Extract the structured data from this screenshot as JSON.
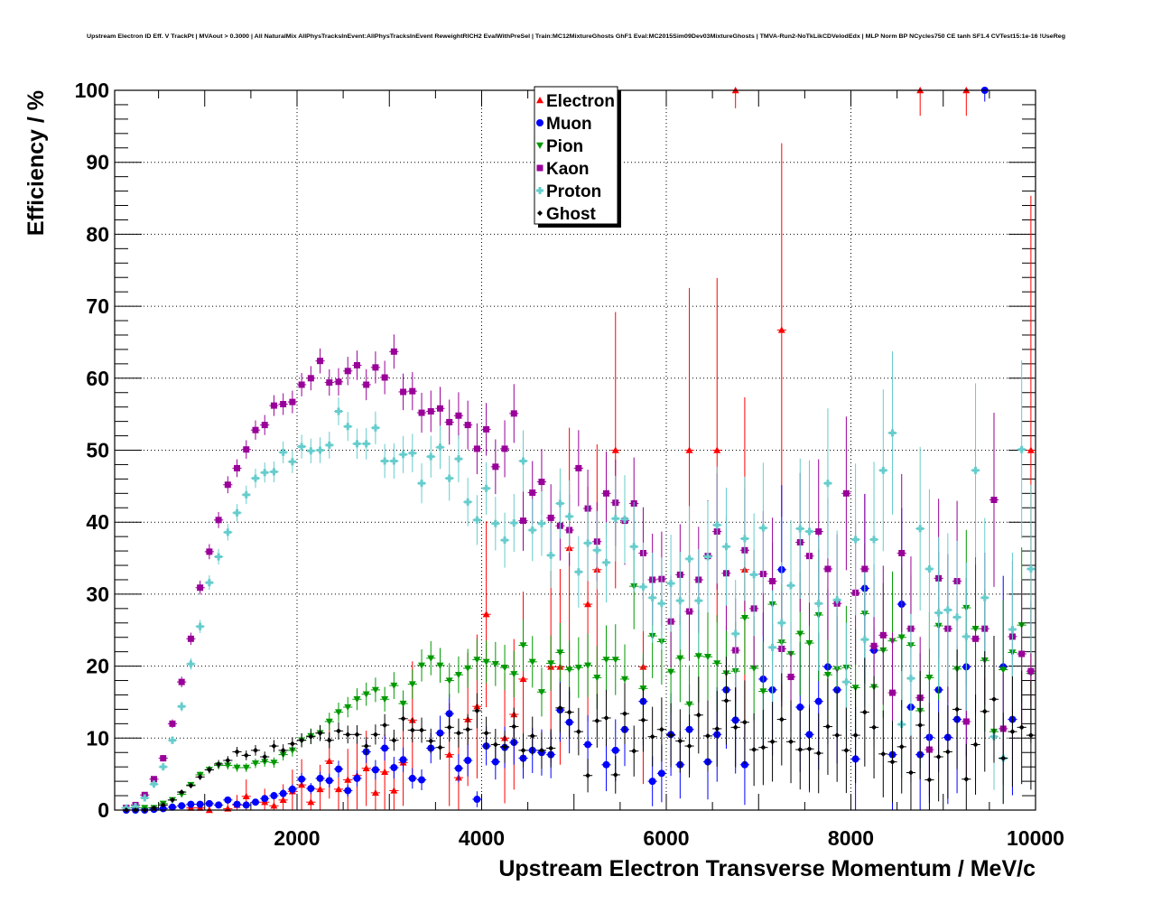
{
  "chart_data": {
    "type": "scatter",
    "title": "Upstream Electron ID Eff. V TrackPt | MVAout > 0.3000 | All NaturalMix AllPhysTracksInEvent:AllPhysTracksInEvent ReweightRICH2 EvalWithPreSel | Train:MC12MixtureGhosts GhF1 Eval:MC2015Sim09Dev03MixtureGhosts | TMVA-Run2-NoTkLikCDVelodEdx | MLP Norm BP NCycles750 CE tanh SF1.4 CVTest15:1e-16 !UseReg",
    "xlabel": "Upstream Electron Transverse Momentum / MeV/c",
    "ylabel": "Efficiency / %",
    "xlim": [
      0,
      10000
    ],
    "ylim": [
      0,
      100
    ],
    "xticks": [
      "2000",
      "4000",
      "6000",
      "8000",
      "10000"
    ],
    "yticks": [
      "0",
      "10",
      "20",
      "30",
      "40",
      "50",
      "60",
      "70",
      "80",
      "90",
      "100"
    ],
    "grid": true,
    "legend_position": "top-center",
    "x": [
      150,
      250,
      350,
      450,
      550,
      650,
      750,
      850,
      950,
      1050,
      1150,
      1250,
      1350,
      1450,
      1550,
      1650,
      1750,
      1850,
      1950,
      2050,
      2150,
      2250,
      2350,
      2450,
      2550,
      2650,
      2750,
      2850,
      2950,
      3050,
      3150,
      3250,
      3350,
      3450,
      3550,
      3650,
      3750,
      3850,
      3950,
      4050,
      4150,
      4250,
      4350,
      4450,
      4550,
      4650,
      4750,
      4850,
      4950,
      5050,
      5150,
      5250,
      5350,
      5450,
      5550,
      5650,
      5750,
      5850,
      5950,
      6050,
      6150,
      6250,
      6350,
      6450,
      6550,
      6650,
      6750,
      6850,
      6950,
      7050,
      7150,
      7250,
      7350,
      7450,
      7550,
      7650,
      7750,
      7850,
      7950,
      8050,
      8150,
      8250,
      8350,
      8450,
      8550,
      8650,
      8750,
      8850,
      8950,
      9050,
      9150,
      9250,
      9350,
      9450,
      9550,
      9650,
      9750,
      9850,
      9950
    ],
    "series": [
      {
        "name": "Electron",
        "color": "#ff0000",
        "marker": "triangle-up",
        "y": [
          null,
          null,
          null,
          null,
          null,
          null,
          null,
          0.3,
          0.3,
          0,
          null,
          0.2,
          0.7,
          1.9,
          null,
          1.1,
          0.6,
          1.4,
          2.6,
          3.5,
          1.1,
          2.9,
          6.8,
          2.9,
          4.2,
          4.8,
          5.8,
          2.4,
          5.3,
          2.7,
          6.6,
          12.5,
          null,
          null,
          null,
          7.7,
          4.5,
          12.6,
          14.4,
          27.2,
          null,
          10.0,
          13.3,
          18.2,
          null,
          null,
          19.9,
          19.9,
          36.4,
          null,
          28.6,
          33.4,
          null,
          50.0,
          null,
          null,
          19.9,
          null,
          null,
          null,
          null,
          50.0,
          null,
          null,
          50.0,
          null,
          100,
          33.4,
          null,
          null,
          null,
          66.7,
          null,
          null,
          null,
          null,
          null,
          null,
          null,
          null,
          null,
          null,
          null,
          null,
          null,
          null,
          100,
          null,
          null,
          null,
          null,
          100,
          null,
          null,
          null,
          null,
          null,
          null,
          50.0
        ]
      },
      {
        "name": "Muon",
        "color": "#0000ff",
        "marker": "circle",
        "y": [
          0,
          0,
          0,
          0.1,
          0.2,
          0.4,
          0.6,
          0.8,
          0.8,
          0.9,
          0.7,
          1.4,
          0.8,
          0.7,
          1.1,
          1.6,
          2.0,
          2.3,
          2.9,
          4.3,
          3.0,
          4.4,
          4.1,
          5.7,
          2.7,
          4.4,
          8.1,
          5.6,
          8.6,
          5.9,
          7.0,
          4.4,
          4.2,
          8.6,
          10.7,
          13.4,
          5.8,
          6.9,
          1.5,
          8.9,
          6.7,
          8.7,
          9.4,
          7.2,
          8.3,
          8.0,
          7.7,
          13.9,
          12.2,
          null,
          9.1,
          null,
          6.3,
          8.3,
          11.2,
          null,
          15.1,
          4.0,
          5.1,
          10.5,
          6.3,
          11.2,
          null,
          6.7,
          10.5,
          16.7,
          12.5,
          6.3,
          null,
          18.2,
          16.7,
          33.4,
          null,
          14.3,
          10.5,
          15.1,
          19.9,
          16.7,
          null,
          7.1,
          30.8,
          22.2,
          null,
          7.7,
          28.6,
          14.3,
          7.7,
          10.1,
          16.7,
          10.1,
          12.6,
          19.9,
          null,
          100,
          null,
          19.9,
          12.6,
          null,
          null
        ]
      },
      {
        "name": "Pion",
        "color": "#009900",
        "marker": "triangle-down",
        "y": [
          0.3,
          0.3,
          0.3,
          0.3,
          0.9,
          1.4,
          2.2,
          3.5,
          4.9,
          5.6,
          6.2,
          6.2,
          5.9,
          5.9,
          6.5,
          6.7,
          6.6,
          7.7,
          8.3,
          9.7,
          10.3,
          10.7,
          12.3,
          13.6,
          14.3,
          15.4,
          16.1,
          16.7,
          15.4,
          17.3,
          14.8,
          17.5,
          20.1,
          21.1,
          20.1,
          18.0,
          18.8,
          19.7,
          20.9,
          20.6,
          20.3,
          19.8,
          18.9,
          22.9,
          20.6,
          16.4,
          20.4,
          21.9,
          19.5,
          19.8,
          20.1,
          18.4,
          20.9,
          20.9,
          18.2,
          31.1,
          16.9,
          24.2,
          23.4,
          19.2,
          21.1,
          14.7,
          21.4,
          21.3,
          20.4,
          19.0,
          19.3,
          26.7,
          19.7,
          16.5,
          28.6,
          23.3,
          21.7,
          24.5,
          23.2,
          27.1,
          18.8,
          19.6,
          19.8,
          17.0,
          27.3,
          17.1,
          22.2,
          23.5,
          24.0,
          22.9,
          13.8,
          18.4,
          25.6,
          25.2,
          19.6,
          28.1,
          25.2,
          20.8,
          10.9,
          19.5,
          21.9,
          25.7,
          19.0
        ]
      },
      {
        "name": "Kaon",
        "color": "#990099",
        "marker": "square",
        "y": [
          0.3,
          0.7,
          2.1,
          4.3,
          7.2,
          12.0,
          17.8,
          23.8,
          30.9,
          35.9,
          40.3,
          45.2,
          47.5,
          50.1,
          52.8,
          53.5,
          56.2,
          56.4,
          56.7,
          59.1,
          60.0,
          62.4,
          59.4,
          59.5,
          61.0,
          61.8,
          59.1,
          61.5,
          60.1,
          63.7,
          58.1,
          58.2,
          55.2,
          55.4,
          55.8,
          53.9,
          54.8,
          53.5,
          50.2,
          52.9,
          47.7,
          50.2,
          55.1,
          40.2,
          44.1,
          45.6,
          40.6,
          39.5,
          38.9,
          47.5,
          41.9,
          37.3,
          44.0,
          42.7,
          40.2,
          42.6,
          35.7,
          32.0,
          32.1,
          26.2,
          32.7,
          27.6,
          32.0,
          35.3,
          38.7,
          32.9,
          22.2,
          36.1,
          28.0,
          32.8,
          31.8,
          22.4,
          18.5,
          37.2,
          35.3,
          38.7,
          33.5,
          28.7,
          44.0,
          30.2,
          33.5,
          22.8,
          24.3,
          16.3,
          35.7,
          25.2,
          15.6,
          8.4,
          32.2,
          25.2,
          31.8,
          12.3,
          23.8,
          25.2,
          43.1,
          11.3,
          24.1,
          21.7,
          19.3
        ]
      },
      {
        "name": "Proton",
        "color": "#66cccc",
        "marker": "cross",
        "y": [
          0.3,
          0.5,
          1.7,
          3.6,
          6.0,
          9.7,
          14.4,
          20.3,
          25.5,
          31.6,
          35.2,
          38.6,
          41.3,
          43.8,
          46.1,
          46.9,
          47.0,
          49.7,
          48.4,
          50.5,
          49.9,
          50.0,
          50.7,
          55.4,
          53.3,
          50.9,
          50.9,
          53.1,
          48.5,
          48.5,
          49.4,
          49.6,
          45.4,
          49.1,
          50.4,
          46.1,
          48.8,
          42.8,
          40.3,
          44.7,
          39.8,
          37.5,
          39.9,
          48.5,
          38.9,
          39.8,
          35.4,
          42.6,
          40.8,
          33.1,
          37.1,
          36.1,
          34.4,
          40.5,
          40.4,
          36.6,
          31.0,
          29.5,
          28.7,
          31.5,
          29.1,
          34.9,
          29.1,
          35.2,
          39.6,
          36.6,
          24.5,
          37.7,
          32.7,
          39.2,
          22.6,
          26.0,
          31.2,
          39.1,
          38.7,
          28.7,
          45.4,
          29.2,
          17.8,
          37.6,
          23.7,
          37.6,
          47.2,
          52.4,
          11.9,
          18.3,
          39.1,
          33.5,
          27.4,
          27.8,
          26.8,
          24.1,
          47.2,
          29.5,
          10.2,
          7.2,
          25.1,
          50.1,
          33.5
        ]
      },
      {
        "name": "Ghost",
        "color": "#000000",
        "marker": "diamond",
        "y": [
          0,
          0,
          0,
          0.3,
          0.7,
          1.4,
          2.5,
          3.4,
          4.6,
          5.6,
          6.4,
          6.9,
          8.1,
          7.6,
          8.3,
          7.4,
          8.9,
          8.3,
          9.2,
          9.7,
          10.2,
          10.7,
          9.7,
          11.0,
          10.5,
          10.5,
          8.9,
          10.5,
          11.8,
          9.7,
          12.7,
          11.1,
          11.1,
          9.6,
          8.7,
          11.5,
          10.7,
          11.2,
          13.8,
          10.7,
          9.1,
          8.8,
          11.6,
          8.3,
          10.3,
          8.3,
          8.6,
          14.2,
          13.6,
          10.9,
          4.8,
          12.4,
          12.8,
          4.9,
          13.4,
          8.2,
          12.5,
          10.2,
          11.2,
          10.4,
          9.6,
          8.9,
          13.2,
          10.3,
          11.3,
          15.2,
          11.5,
          12.2,
          8.4,
          8.7,
          9.5,
          12.6,
          9.5,
          8.4,
          8.5,
          7.9,
          11.6,
          10.4,
          8.3,
          10.4,
          13.6,
          11.5,
          7.8,
          6.7,
          8.8,
          5.2,
          11.8,
          4.2,
          7.4,
          8.1,
          14.0,
          4.3,
          9.1,
          13.7,
          15.4,
          7.2,
          10.9,
          11.5,
          10.4
        ]
      }
    ]
  }
}
